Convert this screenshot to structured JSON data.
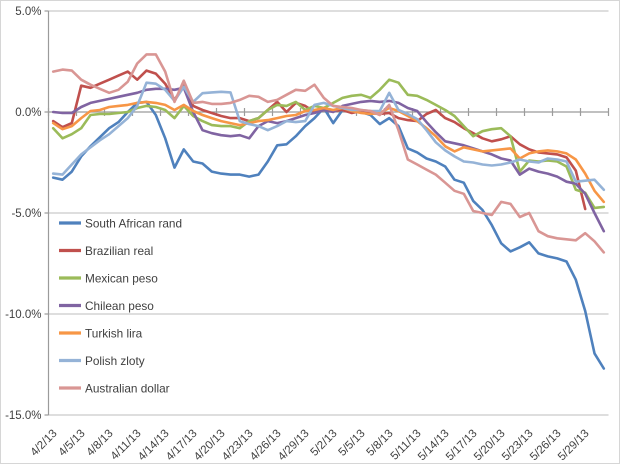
{
  "chart_data": {
    "type": "line",
    "title": "",
    "xlabel": "",
    "ylabel": "",
    "unit": "percent",
    "ylim": [
      -15,
      5
    ],
    "grid": "horizontal",
    "legend_position": "left-middle-overlay",
    "colors": {
      "axis": "#9b9b9b",
      "gridline": "#bdbdbd",
      "text": "#404040",
      "background": "#ffffff"
    },
    "y_ticks": [
      {
        "label": "5.0%",
        "value": 5
      },
      {
        "label": "0.0%",
        "value": 0
      },
      {
        "label": "-5.0%",
        "value": -5
      },
      {
        "label": "-10.0%",
        "value": -10
      },
      {
        "label": "-15.0%",
        "value": -15
      }
    ],
    "x_tick_every": 3,
    "x": [
      "4/2/13",
      "4/3/13",
      "4/4/13",
      "4/5/13",
      "4/6/13",
      "4/7/13",
      "4/8/13",
      "4/9/13",
      "4/10/13",
      "4/11/13",
      "4/12/13",
      "4/13/13",
      "4/14/13",
      "4/15/13",
      "4/16/13",
      "4/17/13",
      "4/18/13",
      "4/19/13",
      "4/20/13",
      "4/21/13",
      "4/22/13",
      "4/23/13",
      "4/24/13",
      "4/25/13",
      "4/26/13",
      "4/27/13",
      "4/28/13",
      "4/29/13",
      "4/30/13",
      "5/1/13",
      "5/2/13",
      "5/3/13",
      "5/4/13",
      "5/5/13",
      "5/6/13",
      "5/7/13",
      "5/8/13",
      "5/9/13",
      "5/10/13",
      "5/11/13",
      "5/12/13",
      "5/13/13",
      "5/14/13",
      "5/15/13",
      "5/16/13",
      "5/17/13",
      "5/18/13",
      "5/19/13",
      "5/20/13",
      "5/21/13",
      "5/22/13",
      "5/23/13",
      "5/24/13",
      "5/25/13",
      "5/26/13",
      "5/27/13",
      "5/28/13",
      "5/29/13",
      "5/30/13",
      "5/31/13"
    ],
    "series": [
      {
        "name": "South African rand",
        "color": "#4F81BD",
        "values": [
          -3.25,
          -3.35,
          -2.95,
          -2.2,
          -1.7,
          -1.25,
          -0.8,
          -0.5,
          0.0,
          0.45,
          0.5,
          -0.15,
          -1.3,
          -2.75,
          -1.85,
          -2.45,
          -2.55,
          -2.95,
          -3.05,
          -3.1,
          -3.1,
          -3.2,
          -3.1,
          -2.45,
          -1.65,
          -1.6,
          -1.2,
          -0.7,
          -0.3,
          0.2,
          -0.55,
          0.1,
          0.1,
          0.0,
          -0.15,
          -0.6,
          -0.3,
          -0.7,
          -1.8,
          -2.0,
          -2.3,
          -2.45,
          -2.7,
          -3.35,
          -3.5,
          -4.4,
          -4.85,
          -5.6,
          -6.5,
          -6.9,
          -6.7,
          -6.45,
          -7.0,
          -7.15,
          -7.25,
          -7.4,
          -8.3,
          -9.85,
          -11.95,
          -12.7
        ]
      },
      {
        "name": "Brazilian real",
        "color": "#C0504D",
        "values": [
          -0.45,
          -0.75,
          -0.55,
          1.3,
          1.2,
          1.4,
          1.6,
          1.8,
          2.0,
          1.6,
          2.05,
          1.9,
          1.4,
          0.6,
          1.3,
          0.3,
          0.1,
          -0.05,
          -0.2,
          -0.3,
          -0.3,
          -0.45,
          -0.3,
          0.1,
          0.5,
          0.0,
          0.45,
          0.3,
          0.0,
          0.1,
          0.05,
          0.1,
          -0.05,
          0.05,
          -0.05,
          -0.1,
          -0.05,
          -0.3,
          -0.4,
          -0.45,
          -0.1,
          0.1,
          -0.3,
          -0.5,
          -0.8,
          -1.05,
          -1.3,
          -1.45,
          -1.35,
          -1.2,
          -1.6,
          -1.85,
          -2.0,
          -2.05,
          -2.1,
          -2.25,
          -2.9,
          -4.8,
          null,
          null
        ]
      },
      {
        "name": "Mexican peso",
        "color": "#9BBB59",
        "values": [
          -0.8,
          -1.3,
          -1.1,
          -0.8,
          -0.15,
          -0.1,
          -0.1,
          -0.05,
          0.0,
          0.2,
          0.3,
          0.25,
          0.1,
          -0.3,
          0.3,
          -0.2,
          -0.45,
          -0.65,
          -0.7,
          -0.7,
          -0.8,
          -0.45,
          -0.3,
          0.1,
          0.35,
          0.3,
          0.5,
          0.1,
          0.3,
          0.2,
          0.45,
          0.7,
          0.8,
          0.85,
          0.7,
          1.1,
          1.6,
          1.45,
          0.85,
          0.8,
          0.6,
          0.35,
          0.1,
          -0.2,
          -0.7,
          -1.2,
          -0.95,
          -0.85,
          -0.8,
          -1.2,
          -2.95,
          -2.4,
          -2.45,
          -2.4,
          -2.45,
          -2.7,
          -3.85,
          -4.0,
          -4.75,
          -4.7
        ]
      },
      {
        "name": "Chilean peso",
        "color": "#8064A2",
        "values": [
          0.0,
          -0.05,
          -0.05,
          0.25,
          0.45,
          0.55,
          0.65,
          0.75,
          0.85,
          0.95,
          1.1,
          1.15,
          1.15,
          1.1,
          1.2,
          0.0,
          -0.9,
          -1.05,
          -1.15,
          -1.2,
          -1.15,
          -1.3,
          -0.7,
          -0.45,
          -0.55,
          -0.45,
          -0.3,
          -0.15,
          -0.05,
          0.1,
          0.0,
          0.3,
          0.4,
          0.5,
          0.55,
          0.5,
          0.55,
          0.45,
          0.2,
          0.05,
          -0.5,
          -1.0,
          -1.45,
          -1.55,
          -1.65,
          -1.8,
          -1.95,
          -2.1,
          -2.3,
          -2.4,
          -3.1,
          -2.8,
          -2.95,
          -3.05,
          -3.2,
          -3.45,
          -3.55,
          -4.05,
          -5.0,
          -5.9
        ]
      },
      {
        "name": "Turkish lira",
        "color": "#F79646",
        "values": [
          -0.55,
          -0.85,
          -0.7,
          -0.3,
          0.05,
          0.1,
          0.25,
          0.3,
          0.35,
          0.45,
          0.5,
          0.45,
          0.35,
          0.1,
          0.35,
          0.05,
          -0.15,
          -0.3,
          -0.45,
          -0.55,
          -0.65,
          -0.55,
          -0.45,
          -0.4,
          -0.3,
          -0.2,
          -0.15,
          0.05,
          0.1,
          0.2,
          0.1,
          0.2,
          0.05,
          -0.05,
          -0.1,
          -0.05,
          0.2,
          0.05,
          -0.2,
          -0.45,
          -0.8,
          -1.2,
          -1.7,
          -1.95,
          -1.75,
          -1.85,
          -1.95,
          -1.9,
          -1.85,
          -1.8,
          -2.3,
          -2.05,
          -1.95,
          -1.9,
          -1.95,
          -2.05,
          -2.35,
          -3.05,
          -3.9,
          -4.45
        ]
      },
      {
        "name": "Polish zloty",
        "color": "#95B3D7",
        "values": [
          -3.05,
          -3.1,
          -2.6,
          -2.1,
          -1.75,
          -1.4,
          -1.1,
          -0.7,
          -0.3,
          0.3,
          1.45,
          1.4,
          1.1,
          0.55,
          1.25,
          0.5,
          0.93,
          0.97,
          1.0,
          0.97,
          -0.45,
          -0.6,
          -0.7,
          -0.9,
          -0.7,
          -0.45,
          -0.5,
          -0.45,
          0.35,
          0.45,
          0.3,
          0.2,
          0.1,
          0.1,
          0.05,
          0.05,
          0.95,
          0.1,
          -0.1,
          -0.35,
          -0.9,
          -1.5,
          -1.9,
          -2.2,
          -2.45,
          -2.5,
          -2.6,
          -2.65,
          -2.6,
          -2.5,
          -2.35,
          -2.45,
          -2.5,
          -2.3,
          -2.35,
          -2.45,
          -3.45,
          -3.4,
          -3.35,
          -3.85
        ]
      },
      {
        "name": "Australian dollar",
        "color": "#D99694",
        "values": [
          2.0,
          2.1,
          2.05,
          1.6,
          1.35,
          1.15,
          0.95,
          1.1,
          1.5,
          2.4,
          2.85,
          2.85,
          2.0,
          0.5,
          1.55,
          0.45,
          0.5,
          0.4,
          0.4,
          0.45,
          0.6,
          0.8,
          0.75,
          0.5,
          0.6,
          0.85,
          1.1,
          1.05,
          1.35,
          0.7,
          0.3,
          0.25,
          0.2,
          0.1,
          0.05,
          -0.15,
          0.35,
          -0.9,
          -2.35,
          -2.6,
          -2.85,
          -3.1,
          -3.5,
          -3.9,
          -4.05,
          -4.9,
          -5.0,
          -5.1,
          -4.45,
          -4.55,
          -5.2,
          -5.0,
          -5.9,
          -6.15,
          -6.25,
          -6.3,
          -6.35,
          -6.0,
          -6.4,
          -6.95
        ]
      }
    ]
  }
}
